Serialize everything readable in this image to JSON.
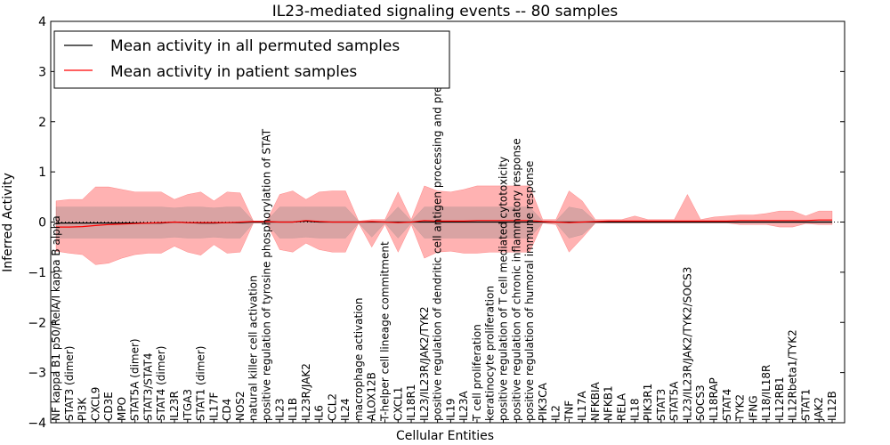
{
  "chart_data": {
    "type": "line",
    "title": "IL23-mediated signaling events -- 80 samples",
    "xlabel": "Cellular Entities",
    "ylabel": "Inferred Activity",
    "ylim": [
      -4,
      4
    ],
    "yticks": [
      "−4",
      "−3",
      "−2",
      "−1",
      "0",
      "1",
      "2",
      "3",
      "4"
    ],
    "legend": {
      "position": "top-left",
      "entries": [
        {
          "label": "Mean activity in all permuted samples",
          "color": "#000000"
        },
        {
          "label": "Mean activity in patient samples",
          "color": "#ff0000"
        }
      ]
    },
    "categories": [
      "NF kappa B1 p50/RelA/I kappa B alpha",
      "STAT3 (dimer)",
      "PI3K",
      "CXCL9",
      "CD3E",
      "MPO",
      "STAT5A (dimer)",
      "STAT3/STAT4",
      "STAT4 (dimer)",
      "IL23R",
      "ITGA3",
      "STAT1 (dimer)",
      "IL17F",
      "CD4",
      "NOS2",
      "natural killer cell activation",
      "positive regulation of tyrosine phosphorylation of STAT",
      "IL23",
      "IL1B",
      "IL23R/JAK2",
      "IL6",
      "CCL2",
      "IL24",
      "macrophage activation",
      "ALOX12B",
      "T-helper cell lineage commitment",
      "CXCL1",
      "IL18R1",
      "IL23/IL23R/JAK2/TYK2",
      "positive regulation of dendritic cell antigen processing and presentation",
      "IL19",
      "IL23A",
      "T cell proliferation",
      "keratinocyte proliferation",
      "positive regulation of T cell mediated cytotoxicity",
      "positive regulation of chronic inflammatory response",
      "positive regulation of humoral immune response",
      "PIK3CA",
      "IL2",
      "TNF",
      "IL17A",
      "NFKBIA",
      "NFKB1",
      "RELA",
      "IL18",
      "PIK3R1",
      "STAT3",
      "STAT5A",
      "IL23/IL23R/JAK2/TYK2/SOCS3",
      "SOCS3",
      "IL18RAP",
      "STAT4",
      "TYK2",
      "IFNG",
      "IL18/IL18R",
      "IL12RB1",
      "IL12Rbeta1/TYK2",
      "STAT1",
      "JAK2",
      "IL12B"
    ],
    "series": [
      {
        "name": "Mean activity in all permuted samples",
        "color": "#000000",
        "values": [
          -0.02,
          -0.02,
          -0.02,
          -0.02,
          -0.02,
          -0.02,
          -0.02,
          -0.02,
          -0.02,
          0.0,
          -0.01,
          -0.02,
          -0.02,
          -0.01,
          -0.01,
          0.0,
          0.0,
          0.0,
          0.0,
          0.02,
          0.0,
          0.0,
          0.0,
          0.0,
          0.0,
          0.0,
          0.0,
          0.0,
          0.0,
          0.0,
          0.0,
          0.0,
          0.0,
          0.0,
          0.0,
          0.0,
          0.0,
          0.0,
          0.0,
          0.0,
          0.0,
          0.0,
          0.0,
          0.0,
          0.0,
          0.0,
          0.0,
          0.0,
          0.0,
          0.0,
          0.0,
          0.0,
          0.0,
          0.0,
          0.0,
          0.0,
          0.0,
          0.0,
          0.0,
          0.0
        ]
      },
      {
        "name": "Mean activity in patient samples",
        "color": "#ff0000",
        "values": [
          -0.1,
          -0.1,
          -0.09,
          -0.07,
          -0.05,
          -0.04,
          -0.03,
          -0.02,
          -0.01,
          0.0,
          -0.01,
          -0.01,
          -0.01,
          -0.01,
          0.0,
          0.01,
          0.01,
          0.0,
          0.0,
          0.03,
          0.01,
          0.0,
          0.0,
          0.0,
          0.01,
          0.0,
          -0.01,
          0.0,
          0.03,
          0.02,
          0.02,
          0.02,
          0.03,
          0.03,
          0.03,
          0.03,
          0.03,
          0.01,
          0.0,
          -0.01,
          0.0,
          0.01,
          0.02,
          0.02,
          0.02,
          0.02,
          0.02,
          0.02,
          0.02,
          0.02,
          0.02,
          0.02,
          0.03,
          0.03,
          0.03,
          0.03,
          0.03,
          0.03,
          0.04,
          0.04
        ]
      }
    ],
    "band_outer": {
      "name": "patient spread",
      "color": "#ff0000",
      "upper": [
        0.42,
        0.45,
        0.45,
        0.7,
        0.7,
        0.65,
        0.6,
        0.6,
        0.6,
        0.45,
        0.55,
        0.6,
        0.42,
        0.6,
        0.58,
        0.02,
        0.02,
        0.55,
        0.62,
        0.45,
        0.6,
        0.62,
        0.62,
        0.02,
        0.05,
        0.05,
        0.6,
        0.05,
        0.72,
        0.62,
        0.6,
        0.65,
        0.72,
        0.72,
        0.72,
        0.72,
        0.72,
        0.05,
        0.05,
        0.62,
        0.42,
        0.05,
        0.05,
        0.05,
        0.12,
        0.05,
        0.05,
        0.05,
        0.55,
        0.05,
        0.1,
        0.12,
        0.14,
        0.14,
        0.17,
        0.22,
        0.22,
        0.12,
        0.22,
        0.22
      ],
      "lower": [
        -0.58,
        -0.62,
        -0.65,
        -0.85,
        -0.82,
        -0.72,
        -0.65,
        -0.62,
        -0.62,
        -0.48,
        -0.6,
        -0.66,
        -0.45,
        -0.62,
        -0.6,
        -0.02,
        -0.02,
        -0.55,
        -0.6,
        -0.42,
        -0.55,
        -0.6,
        -0.6,
        -0.02,
        -0.5,
        -0.05,
        -0.6,
        -0.05,
        -0.72,
        -0.6,
        -0.58,
        -0.62,
        -0.62,
        -0.6,
        -0.6,
        -0.6,
        -0.6,
        -0.02,
        -0.05,
        -0.6,
        -0.32,
        -0.02,
        -0.02,
        -0.02,
        -0.02,
        -0.02,
        -0.02,
        -0.02,
        -0.02,
        -0.02,
        -0.02,
        -0.02,
        -0.05,
        -0.05,
        -0.05,
        -0.1,
        -0.1,
        -0.03,
        -0.05,
        -0.05
      ]
    },
    "band_inner": {
      "name": "permuted spread",
      "color": "#808080",
      "upper": [
        0.3,
        0.3,
        0.3,
        0.3,
        0.3,
        0.3,
        0.3,
        0.3,
        0.3,
        0.28,
        0.3,
        0.3,
        0.28,
        0.3,
        0.3,
        0.02,
        0.02,
        0.3,
        0.3,
        0.3,
        0.3,
        0.3,
        0.3,
        0.02,
        0.02,
        0.02,
        0.3,
        0.02,
        0.3,
        0.3,
        0.3,
        0.3,
        0.3,
        0.3,
        0.3,
        0.3,
        0.3,
        0.02,
        0.02,
        0.3,
        0.25,
        0.02,
        0.02,
        0.02,
        0.02,
        0.02,
        0.02,
        0.02,
        0.02,
        0.02,
        0.02,
        0.02,
        0.02,
        0.02,
        0.02,
        0.02,
        0.02,
        0.02,
        0.02,
        0.02
      ],
      "lower": [
        -0.32,
        -0.32,
        -0.32,
        -0.32,
        -0.32,
        -0.32,
        -0.32,
        -0.32,
        -0.32,
        -0.3,
        -0.32,
        -0.32,
        -0.3,
        -0.32,
        -0.32,
        -0.02,
        -0.02,
        -0.32,
        -0.32,
        -0.3,
        -0.32,
        -0.32,
        -0.32,
        -0.02,
        -0.3,
        -0.02,
        -0.32,
        -0.02,
        -0.32,
        -0.32,
        -0.32,
        -0.32,
        -0.32,
        -0.32,
        -0.32,
        -0.32,
        -0.32,
        -0.02,
        -0.02,
        -0.32,
        -0.25,
        -0.02,
        -0.02,
        -0.02,
        -0.02,
        -0.02,
        -0.02,
        -0.02,
        -0.02,
        -0.02,
        -0.02,
        -0.02,
        -0.02,
        -0.02,
        -0.02,
        -0.02,
        -0.02,
        -0.02,
        -0.02,
        -0.02
      ]
    }
  }
}
